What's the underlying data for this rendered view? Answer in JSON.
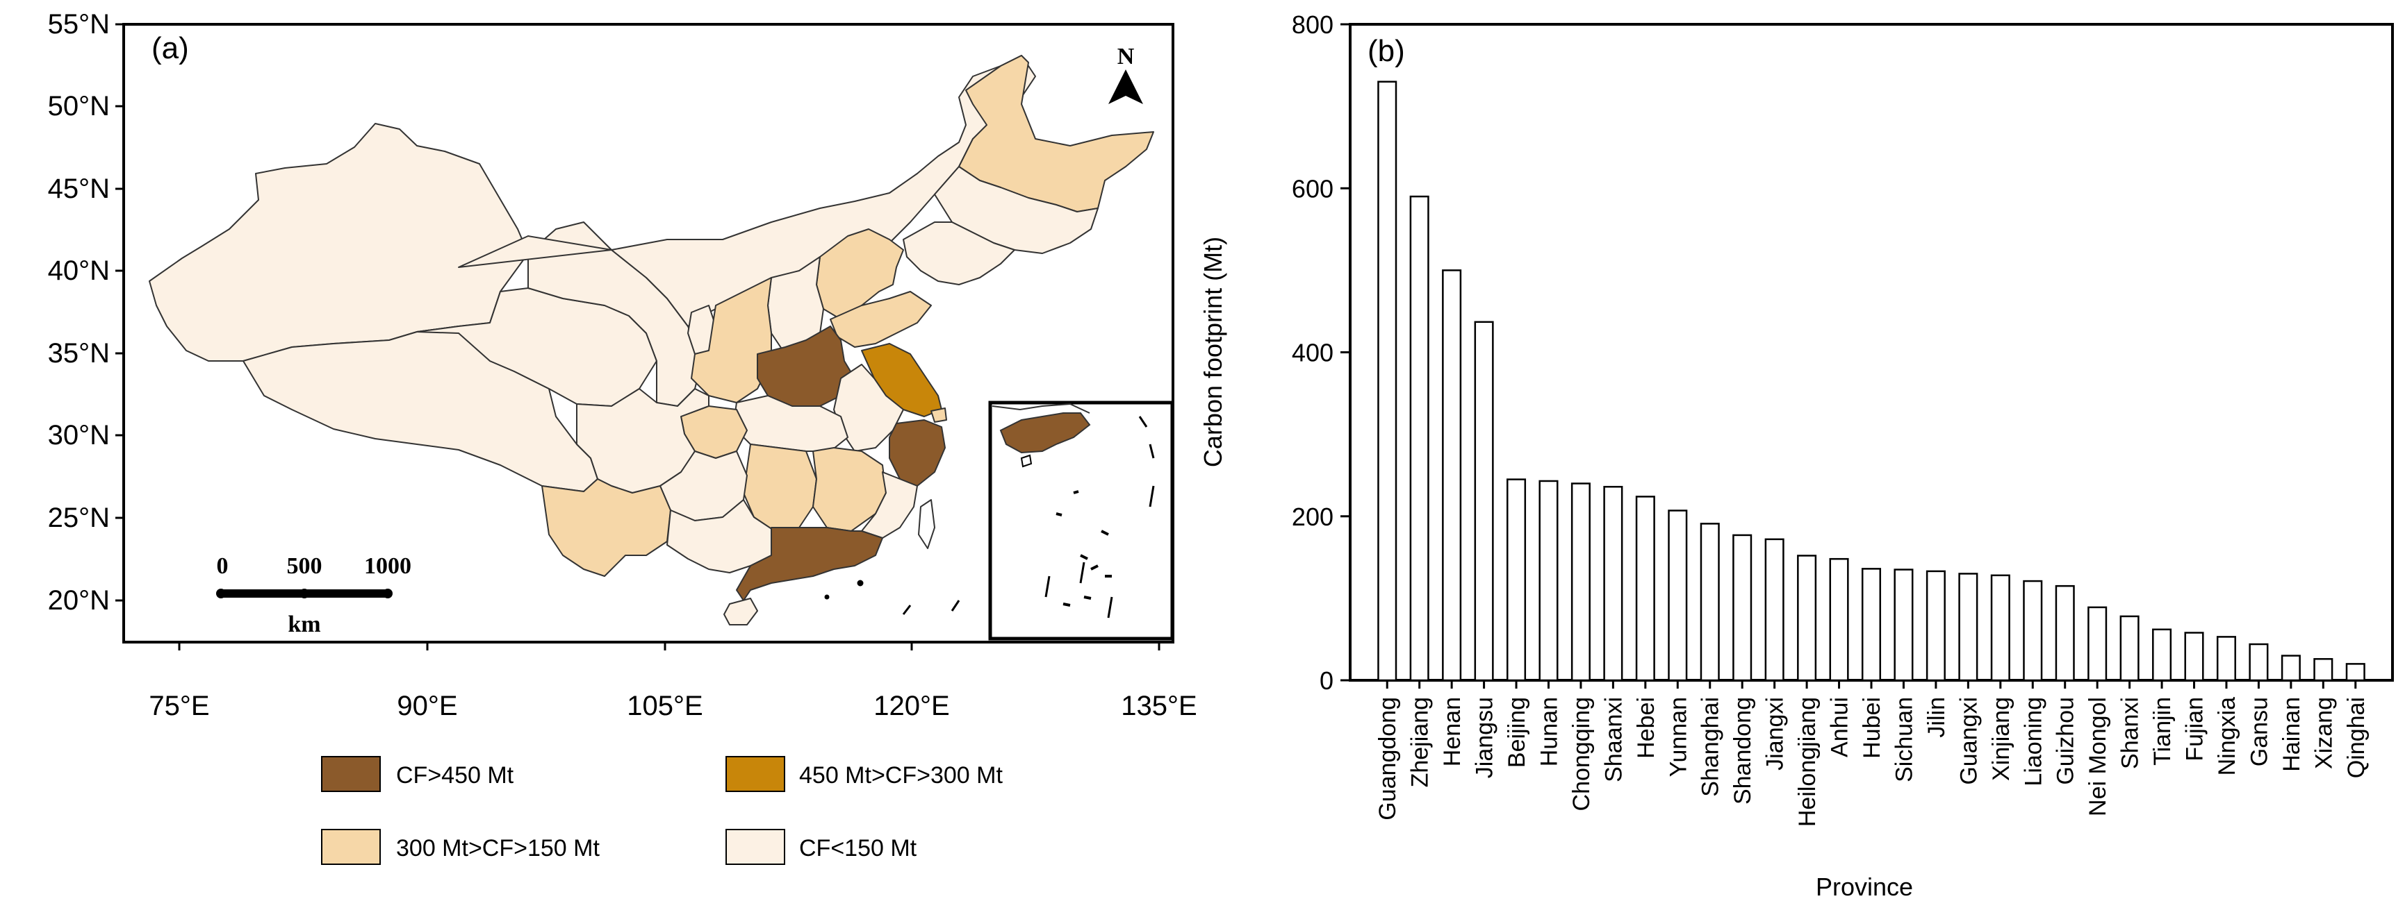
{
  "colors": {
    "cf_gt_450": "#8B5A2B",
    "cf_300_450": "#C8860A",
    "cf_150_300": "#F6D7A8",
    "cf_lt_150": "#FCF1E4",
    "bar_fill": "#FFFFFF",
    "axis": "#000000"
  },
  "map": {
    "panel_label": "(a)",
    "north_label": "N",
    "lat_labels": [
      "55°N",
      "50°N",
      "45°N",
      "40°N",
      "35°N",
      "30°N",
      "25°N",
      "20°N"
    ],
    "lon_labels": [
      "75°E",
      "90°E",
      "105°E",
      "120°E",
      "135°E"
    ],
    "scale_bar": {
      "ticks": [
        "0",
        "500",
        "1000"
      ],
      "unit": "km"
    },
    "legend": [
      {
        "label": "CF>450 Mt",
        "color": "#8B5A2B"
      },
      {
        "label": "450 Mt>CF>300 Mt",
        "color": "#C8860A"
      },
      {
        "label": "300 Mt>CF>150 Mt",
        "color": "#F6D7A8"
      },
      {
        "label": "CF<150 Mt",
        "color": "#FCF1E4"
      }
    ]
  },
  "chart_data": {
    "type": "bar",
    "panel_label": "(b)",
    "title": "",
    "xlabel": "Province",
    "ylabel": "Carbon footprint (Mt)",
    "ylim": [
      0,
      800
    ],
    "yticks": [
      0,
      200,
      400,
      600,
      800
    ],
    "categories": [
      "Guangdong",
      "Zhejiang",
      "Henan",
      "Jiangsu",
      "Beijing",
      "Hunan",
      "Chongqing",
      "Shaanxi",
      "Hebei",
      "Yunnan",
      "Shanghai",
      "Shandong",
      "Jiangxi",
      "Heilongjiang",
      "Anhui",
      "Hubei",
      "Sichuan",
      "Jilin",
      "Guangxi",
      "Xinjiang",
      "Liaoning",
      "Guizhou",
      "Nei Mongol",
      "Shanxi",
      "Tianjin",
      "Fujian",
      "Ningxia",
      "Gansu",
      "Hainan",
      "Xizang",
      "Qinghai"
    ],
    "values": [
      730,
      590,
      500,
      437,
      245,
      243,
      240,
      236,
      224,
      207,
      191,
      177,
      172,
      152,
      148,
      136,
      135,
      133,
      130,
      128,
      121,
      115,
      89,
      78,
      62,
      58,
      53,
      44,
      30,
      26,
      20
    ]
  }
}
